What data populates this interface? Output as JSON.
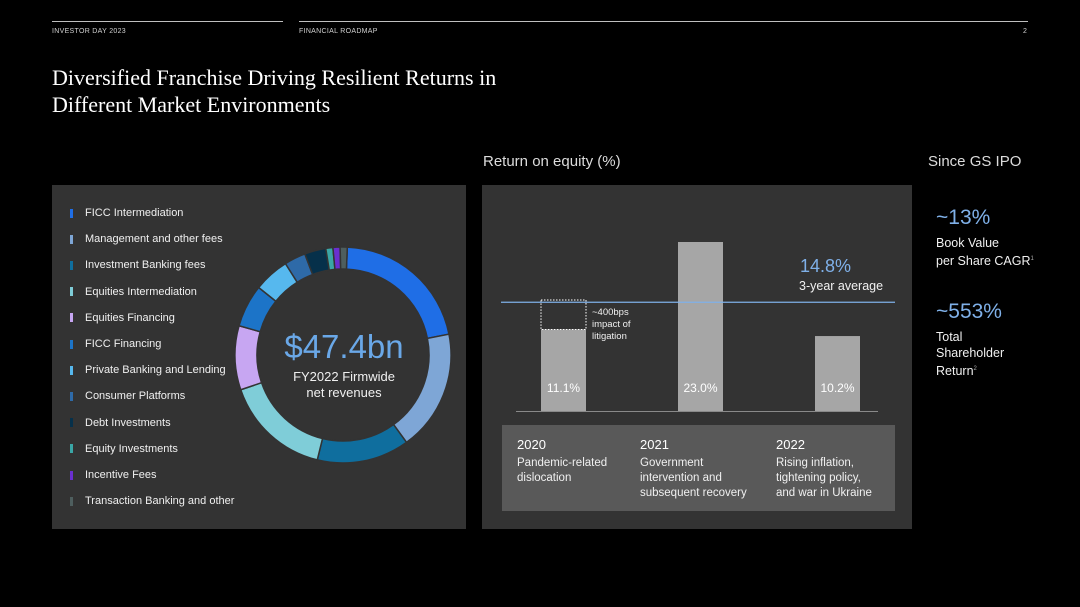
{
  "header": {
    "left": "INVESTOR DAY 2023",
    "middle": "FINANCIAL ROADMAP",
    "page_number": "2"
  },
  "title": {
    "line1": "Diversified Franchise Driving Resilient Returns in",
    "line2": "Different Market Environments"
  },
  "donut": {
    "center_value": "$47.4bn",
    "center_label1": "FY2022 Firmwide",
    "center_label2": "net revenues"
  },
  "roe": {
    "title": "Return on equity (%)",
    "avg_value": "14.8%",
    "avg_label": "3-year average",
    "note_line1": "~400bps",
    "note_line2": "impact of",
    "note_line3": "litigation",
    "years": [
      {
        "year": "2020",
        "desc1": "Pandemic-related",
        "desc2": "dislocation",
        "desc3": ""
      },
      {
        "year": "2021",
        "desc1": "Government",
        "desc2": "intervention and",
        "desc3": "subsequent recovery"
      },
      {
        "year": "2022",
        "desc1": "Rising inflation,",
        "desc2": "tightening policy,",
        "desc3": "and war in Ukraine"
      }
    ]
  },
  "ipo": {
    "title": "Since GS IPO",
    "stat1_value": "~13%",
    "stat1_label1": "Book Value",
    "stat1_label2": "per Share CAGR",
    "stat1_sup": "1",
    "stat2_value": "~553%",
    "stat2_label1": "Total",
    "stat2_label2": "Shareholder",
    "stat2_label3": "Return",
    "stat2_sup": "2"
  },
  "chart_data": [
    {
      "type": "pie",
      "title": "",
      "categories": [
        "FICC Intermediation",
        "Management and other fees",
        "Investment Banking fees",
        "Equities Intermediation",
        "Equities Financing",
        "FICC Financing",
        "Private Banking and Lending",
        "Consumer Platforms",
        "Debt Investments",
        "Equity Investments",
        "Incentive Fees",
        "Transaction Banking and other"
      ],
      "values": [
        20,
        17,
        13,
        15,
        9,
        6,
        5,
        3,
        3,
        1,
        1,
        1
      ],
      "colors": [
        "#1f6ee6",
        "#7ea6d6",
        "#0f6e9e",
        "#7fcdd8",
        "#c7a6f2",
        "#1c74c8",
        "#56b8ee",
        "#2e6aa8",
        "#06304a",
        "#3aa6a6",
        "#6a2fd0",
        "#4e5e5e"
      ],
      "legend": "left"
    },
    {
      "type": "bar",
      "title": "Return on equity (%)",
      "categories": [
        "2020",
        "2021",
        "2022"
      ],
      "values": [
        11.1,
        23.0,
        10.2
      ],
      "labels": [
        "11.1%",
        "23.0%",
        "10.2%"
      ],
      "litigation_impact": 4.0,
      "reference_line": 14.8,
      "ylim": [
        0,
        23.6
      ],
      "colors": [
        "#a6a6a6",
        "#7fb0e8"
      ]
    }
  ]
}
